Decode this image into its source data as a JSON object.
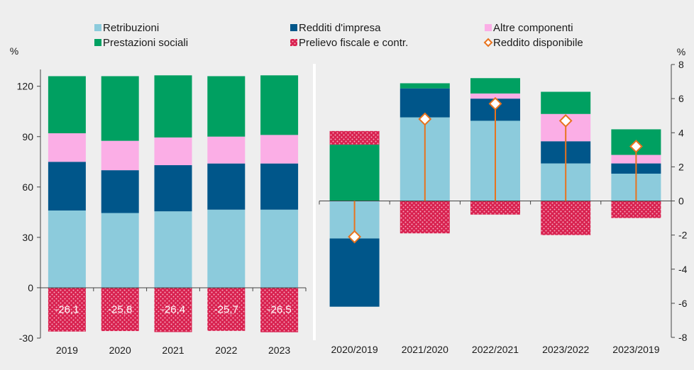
{
  "colors": {
    "background": "#eeeeee",
    "retribuzioni": "#8ccbdc",
    "redditi_impresa": "#00568a",
    "altre_componenti": "#fbaee6",
    "prestazioni_sociali": "#00a061",
    "prelievo_fiscale": "#d8214f",
    "reddito_disponibile_marker": "#e8731e"
  },
  "legend": {
    "items": [
      {
        "key": "retribuzioni",
        "label": "Retribuzioni",
        "symbol": "square"
      },
      {
        "key": "redditi_impresa",
        "label": "Redditi d'impresa",
        "symbol": "square"
      },
      {
        "key": "altre_componenti",
        "label": "Altre componenti",
        "symbol": "square"
      },
      {
        "key": "prestazioni_sociali",
        "label": "Prestazioni sociali",
        "symbol": "square"
      },
      {
        "key": "prelievo_fiscale",
        "label": "Prelievo fiscale e contr.",
        "symbol": "hatched-square"
      },
      {
        "key": "reddito_disponibile",
        "label": "Reddito disponibile",
        "symbol": "diamond"
      }
    ]
  },
  "chart_data": [
    {
      "type": "bar",
      "stacked": true,
      "categories": [
        "2019",
        "2020",
        "2021",
        "2022",
        "2023"
      ],
      "ylabel": "%",
      "ylim": [
        -30,
        130
      ],
      "yticks": [
        -30,
        0,
        30,
        60,
        90,
        120
      ],
      "grid": false,
      "series": [
        {
          "name": "Retribuzioni",
          "key": "retribuzioni",
          "values": [
            46,
            44.5,
            45.5,
            46.5,
            46.5
          ]
        },
        {
          "name": "Redditi d'impresa",
          "key": "redditi_impresa",
          "values": [
            29,
            25.5,
            27.5,
            27.5,
            27.5
          ]
        },
        {
          "name": "Altre componenti",
          "key": "altre_componenti",
          "values": [
            17,
            17.5,
            16.5,
            16,
            17
          ]
        },
        {
          "name": "Prestazioni sociali",
          "key": "prestazioni_sociali",
          "values": [
            34,
            38.5,
            37,
            36,
            35.5
          ]
        },
        {
          "name": "Prelievo fiscale e contr.",
          "key": "prelievo_fiscale",
          "values": [
            -26.1,
            -25.8,
            -26.4,
            -25.7,
            -26.5
          ]
        }
      ],
      "data_labels": [
        "-26,1",
        "-25,8",
        "-26,4",
        "-25,7",
        "-26,5"
      ]
    },
    {
      "type": "bar",
      "stacked": true,
      "categories": [
        "2020/2019",
        "2021/2020",
        "2022/2021",
        "2023/2022",
        "2023/2019"
      ],
      "ylabel": "%",
      "ylim": [
        -8,
        8
      ],
      "yticks": [
        -8,
        -6,
        -4,
        -2,
        0,
        2,
        4,
        6,
        8
      ],
      "grid": false,
      "series": [
        {
          "name": "Retribuzioni",
          "key": "retribuzioni",
          "values": [
            -2.2,
            4.9,
            4.7,
            2.2,
            1.6
          ]
        },
        {
          "name": "Redditi d'impresa",
          "key": "redditi_impresa",
          "values": [
            -4.0,
            1.7,
            1.3,
            1.3,
            0.6
          ]
        },
        {
          "name": "Altre componenti",
          "key": "altre_componenti",
          "values": [
            0,
            0,
            0.3,
            1.6,
            0.5
          ]
        },
        {
          "name": "Prestazioni sociali",
          "key": "prestazioni_sociali",
          "values": [
            3.3,
            0.3,
            0.9,
            1.3,
            1.5
          ]
        },
        {
          "name": "Prelievo fiscale e contr.",
          "key": "prelievo_fiscale",
          "values": [
            0.8,
            -1.9,
            -0.8,
            -2.0,
            -1.0
          ]
        }
      ],
      "line_series": {
        "name": "Reddito disponibile",
        "key": "reddito_disponibile",
        "values": [
          -2.1,
          4.8,
          5.7,
          4.7,
          3.2
        ]
      }
    }
  ]
}
